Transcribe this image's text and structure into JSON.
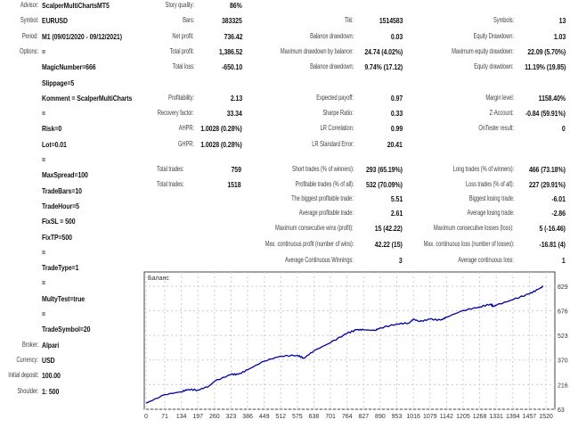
{
  "info": [
    {
      "label": "Advisor:",
      "value": "ScalperMultiChartsMT5"
    },
    {
      "label": "Symbol:",
      "value": "EURUSD"
    },
    {
      "label": "Period:",
      "value": "M1 (09/01/2020 - 09/12/2021)"
    },
    {
      "label": "Options:",
      "value": "="
    }
  ],
  "options": [
    "MagicNumber=666",
    "Slippage=5",
    "Komment = ScalperMultiCharts",
    "=",
    "Risk=0",
    "Lot=0.01",
    "=",
    "MaxSpread=100",
    "TradeBars=10",
    "TradeHour=5",
    "FixSL = 500",
    "FixTP=500",
    "=",
    "TradeType=1",
    "=",
    "MultyTest=true",
    "=",
    "TradeSymbol=20"
  ],
  "account": [
    {
      "label": "Broker:",
      "value": "Alpari"
    },
    {
      "label": "Currency:",
      "value": "USD"
    },
    {
      "label": "Initial deposit:",
      "value": "100.00"
    },
    {
      "label": "Shoulder:",
      "value": "1: 500"
    }
  ],
  "col2": [
    {
      "label": "Story quality:",
      "value": "86%",
      "row": 0
    },
    {
      "label": "Bars:",
      "value": "383325",
      "row": 1
    },
    {
      "label": "Net profit:",
      "value": "736.42",
      "row": 2
    },
    {
      "label": "Total profit:",
      "value": "1,386.52",
      "row": 3
    },
    {
      "label": "Total loss:",
      "value": "-650.10",
      "row": 4
    },
    {
      "label": "Profitability:",
      "value": "2.13",
      "row": 6
    },
    {
      "label": "Recovery factor:",
      "value": "33.34",
      "row": 7
    },
    {
      "label": "AHPR:",
      "value": "1.0028 (0.28%)",
      "row": 8
    },
    {
      "label": "GHPR:",
      "value": "1.0028 (0.28%)",
      "row": 9
    }
  ],
  "col3": [
    {
      "label": "Tiki:",
      "value": "1514583",
      "row": 1
    },
    {
      "label": "Balance drawdown:",
      "value": "0.03",
      "row": 2
    },
    {
      "label": "Maximum drawdown by balance:",
      "value": "24.74 (4.02%)",
      "row": 3
    },
    {
      "label": "Balance drawdown:",
      "value": "9.74% (17.12)",
      "row": 4
    },
    {
      "label": "Expected payoff:",
      "value": "0.97",
      "row": 6
    },
    {
      "label": "Sharpe Ratio:",
      "value": "0.33",
      "row": 7
    },
    {
      "label": "LR Correlation:",
      "value": "0.99",
      "row": 8
    },
    {
      "label": "LR Standard Error:",
      "value": "20.41",
      "row": 9
    }
  ],
  "col4": [
    {
      "label": "Symbols:",
      "value": "13",
      "row": 1
    },
    {
      "label": "Equity Drawdown:",
      "value": "1.03",
      "row": 2
    },
    {
      "label": "Maximum equity drawdown:",
      "value": "22.09 (5.70%)",
      "row": 3
    },
    {
      "label": "Equity drawdown:",
      "value": "11.19% (19.85)",
      "row": 4
    },
    {
      "label": "Margin level:",
      "value": "1158.40%",
      "row": 6
    },
    {
      "label": "Z-Account:",
      "value": "-0.84 (59.91%)",
      "row": 7
    },
    {
      "label": "OnTester result:",
      "value": "0",
      "row": 8
    }
  ],
  "trades_left": [
    {
      "label": "Total trades:",
      "value": "759"
    },
    {
      "label": "Total trades:",
      "value": "1518"
    }
  ],
  "trades_mid": [
    {
      "label": "Short trades (% of winners):",
      "value": "293 (65.19%)"
    },
    {
      "label": "Profitable trades (% of all):",
      "value": "532 (70.09%)"
    },
    {
      "label": "The biggest profitable trade:",
      "value": "5.51"
    },
    {
      "label": "Average profitable trade:",
      "value": "2.61"
    },
    {
      "label": "Maximum consecutive wins (profit):",
      "value": "15 (42.22)"
    },
    {
      "label": "Max. continuous profit (number of wins):",
      "value": "42.22 (15)"
    },
    {
      "label": "Average Continuous Winnings:",
      "value": "3"
    }
  ],
  "trades_right": [
    {
      "label": "Long trades (% of winners):",
      "value": "466 (73.18%)"
    },
    {
      "label": "Loss trades (% of all):",
      "value": "227 (29.91%)"
    },
    {
      "label": "Biggest losing trade:",
      "value": "-6.01"
    },
    {
      "label": "Average losing trade:",
      "value": "-2.86"
    },
    {
      "label": "Maximum consecutive losses (loss):",
      "value": "5 (-16.46)"
    },
    {
      "label": "Max. continuous loss (number of losses):",
      "value": "-16.81 (4)"
    },
    {
      "label": "Average continuous loss:",
      "value": "1"
    }
  ],
  "chart_data": {
    "type": "line",
    "title": "Баланс",
    "xlabel": "",
    "ylabel": "",
    "xticks": [
      0,
      71,
      134,
      197,
      260,
      323,
      386,
      449,
      512,
      575,
      638,
      701,
      764,
      827,
      890,
      953,
      1016,
      1079,
      1142,
      1205,
      1268,
      1331,
      1394,
      1457,
      1520
    ],
    "yticks": [
      63,
      216,
      370,
      523,
      676,
      829
    ],
    "xlim": [
      0,
      1520
    ],
    "ylim": [
      63,
      829
    ],
    "grid": true,
    "line_color": "#0000a0",
    "series": [
      {
        "name": "Баланс",
        "x": [
          0,
          71,
          134,
          160,
          197,
          240,
          260,
          323,
          350,
          386,
          449,
          512,
          575,
          600,
          638,
          701,
          764,
          800,
          827,
          870,
          890,
          953,
          1000,
          1016,
          1040,
          1079,
          1120,
          1142,
          1205,
          1268,
          1310,
          1320,
          1331,
          1394,
          1457,
          1490,
          1510
        ],
        "y": [
          101,
          154,
          172,
          187,
          182,
          208,
          237,
          280,
          280,
          309,
          363,
          394,
          399,
          381,
          427,
          478,
          536,
          558,
          558,
          554,
          569,
          594,
          600,
          624,
          609,
          624,
          618,
          636,
          678,
          700,
          718,
          703,
          711,
          745,
          782,
          809,
          829
        ]
      }
    ]
  }
}
